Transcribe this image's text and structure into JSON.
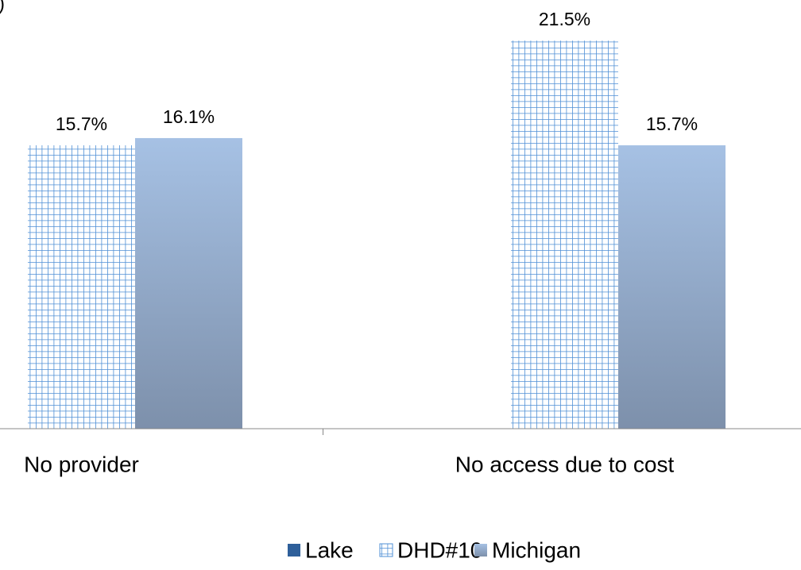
{
  "chart_data": {
    "type": "bar",
    "title": ")",
    "categories": [
      "No provider",
      "No access due to cost"
    ],
    "series": [
      {
        "name": "Lake",
        "color": "#2e5f9a",
        "values": [
          null,
          null
        ]
      },
      {
        "name": "DHD#10",
        "color": "#4f8fd6",
        "pattern": "grid",
        "values": [
          15.7,
          21.5
        ],
        "value_labels": [
          "15.7%",
          "21.5%"
        ]
      },
      {
        "name": "Michigan",
        "color": "#a3bde0",
        "gradient": true,
        "values": [
          16.1,
          15.7
        ],
        "value_labels": [
          "16.1%",
          "15.7%"
        ]
      }
    ],
    "ylim": [
      0,
      23.75
    ],
    "legend": "bottom"
  }
}
